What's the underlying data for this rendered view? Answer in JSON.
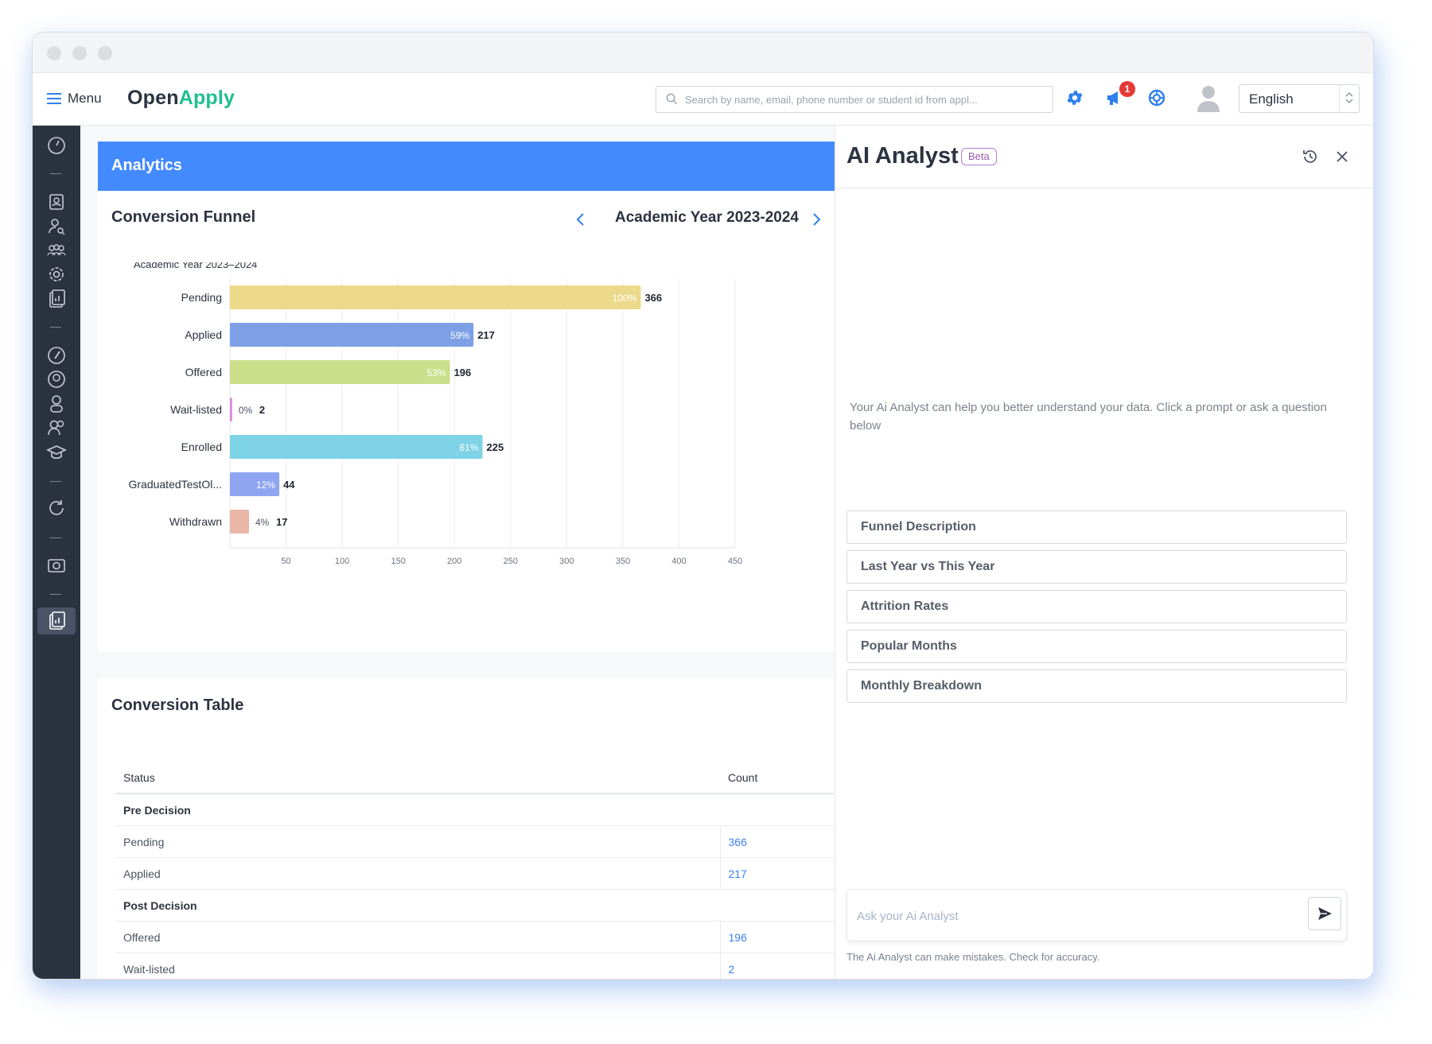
{
  "window": {
    "title_dots": 3
  },
  "app": {
    "menu_label": "Menu",
    "logo_part1": "Open",
    "logo_part2": "Apply",
    "search_placeholder": "Search by name, email, phone number or student id from appl...",
    "notification_count": "1",
    "language": "English"
  },
  "sidebar": {
    "icons": [
      "dashboard-icon",
      "contacts-icon",
      "user-search-icon",
      "group-icon",
      "settings-icon",
      "report-icon",
      "compass-icon",
      "account-circle-icon",
      "person-icon",
      "people-icon",
      "graduation-cap-icon",
      "refresh-icon",
      "camera-icon",
      "analytics-icon"
    ],
    "active": "analytics-icon"
  },
  "analytics": {
    "header": "Analytics",
    "funnel_title": "Conversion Funnel",
    "year": "Academic Year 2023-2024"
  },
  "chart_data": {
    "type": "bar",
    "orientation": "horizontal",
    "title": "Academic Year 2023–2024",
    "categories": [
      "Pending",
      "Applied",
      "Offered",
      "Wait-listed",
      "Enrolled",
      "GraduatedTestOl...",
      "Withdrawn"
    ],
    "values": [
      366,
      217,
      196,
      2,
      225,
      44,
      17
    ],
    "percent_labels": [
      "100%",
      "59%",
      "53%",
      "0%",
      "61%",
      "12%",
      "4%"
    ],
    "colors": [
      "#ecd98a",
      "#7d9fe6",
      "#cbdf8a",
      "#d98bd9",
      "#7fd3e6",
      "#8fa5f2",
      "#e8b7a6"
    ],
    "xlim": [
      0,
      450
    ],
    "xticks": [
      50,
      100,
      150,
      200,
      250,
      300,
      350,
      400,
      450
    ],
    "grid": true
  },
  "table": {
    "title": "Conversion Table",
    "col_status": "Status",
    "col_count": "Count",
    "rows": [
      {
        "label": "Pre Decision",
        "count": "",
        "group": true
      },
      {
        "label": "Pending",
        "count": "366",
        "group": false
      },
      {
        "label": "Applied",
        "count": "217",
        "group": false
      },
      {
        "label": "Post Decision",
        "count": "",
        "group": true
      },
      {
        "label": "Offered",
        "count": "196",
        "group": false
      },
      {
        "label": "Wait-listed",
        "count": "2",
        "group": false
      }
    ]
  },
  "ai": {
    "title": "AI Analyst",
    "beta": "Beta",
    "intro": "Your Ai Analyst can help you better understand your data. Click a prompt or ask a question below",
    "prompts": [
      "Funnel Description",
      "Last Year vs This Year",
      "Attrition Rates",
      "Popular Months",
      "Monthly Breakdown"
    ],
    "ask_placeholder": "Ask your Ai Analyst",
    "disclaimer": "The Ai Analyst can make mistakes. Check for accuracy."
  }
}
